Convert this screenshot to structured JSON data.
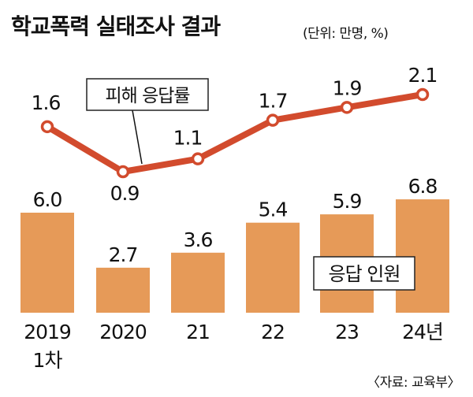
{
  "title": "학교폭력 실태조사 결과",
  "unit": "(단위: 만명, %)",
  "source": "〈자료: 교육부〉",
  "colors": {
    "bar": "#E69A58",
    "line": "#D24B2D",
    "text": "#111111"
  },
  "chart_data": {
    "type": "bar+line",
    "categories": [
      "2019\n1차",
      "2020",
      "21",
      "22",
      "23",
      "24년"
    ],
    "series": [
      {
        "name": "응답 인원",
        "type": "bar",
        "values": [
          6.0,
          2.7,
          3.6,
          5.4,
          5.9,
          6.8
        ]
      },
      {
        "name": "피해 응답률",
        "type": "line",
        "values": [
          1.6,
          0.9,
          1.1,
          1.7,
          1.9,
          2.1
        ]
      }
    ],
    "value_labels_bar": [
      "6.0",
      "2.7",
      "3.6",
      "5.4",
      "5.9",
      "6.8"
    ],
    "value_labels_line": [
      "1.6",
      "0.9",
      "1.1",
      "1.7",
      "1.9",
      "2.1"
    ],
    "legend_bar": "응답 인원",
    "legend_line": "피해 응답률",
    "ylim_bar": [
      0,
      7.2
    ],
    "ylim_line": [
      0.6,
      2.3
    ]
  }
}
